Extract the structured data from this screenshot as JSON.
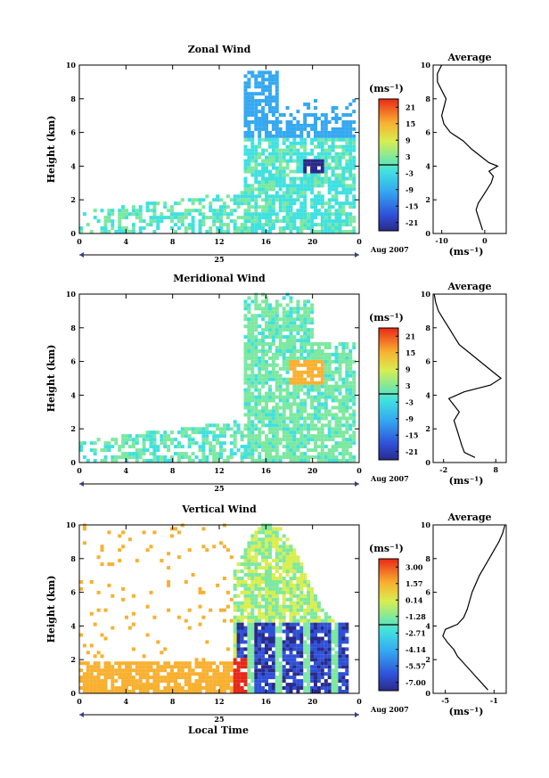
{
  "xlabel": "Local Time",
  "chart_data": [
    {
      "type": "heatmap",
      "title": "Zonal Wind",
      "ylabel": "Height (km)",
      "ylim": [
        0,
        10
      ],
      "xlim": [
        0,
        24
      ],
      "x_ticks": [
        "0",
        "4",
        "8",
        "12",
        "16",
        "20",
        "0"
      ],
      "y_ticks": [
        "0",
        "2",
        "4",
        "6",
        "8",
        "10"
      ],
      "day_label": "25",
      "date_label": "Aug 2007",
      "colorbar": {
        "unit": "(ms⁻¹)",
        "ticks": [
          "21",
          "15",
          "9",
          "3",
          "-3",
          "-9",
          "-15",
          "-21"
        ],
        "range": [
          -24,
          24
        ]
      },
      "profile": {
        "title": "Average",
        "xlabel": "(ms⁻¹)",
        "x_ticks": [
          "-10",
          "0"
        ],
        "xlim": [
          -12,
          5
        ],
        "ylim": [
          0,
          10
        ],
        "y_ticks": [
          "0",
          "2",
          "4",
          "6",
          "8",
          "10"
        ],
        "points": [
          [
            -0.5,
            0.2
          ],
          [
            -1,
            0.6
          ],
          [
            -1.5,
            1
          ],
          [
            -2,
            1.4
          ],
          [
            -1.5,
            1.8
          ],
          [
            -0.5,
            2.2
          ],
          [
            0.5,
            2.6
          ],
          [
            1.5,
            3
          ],
          [
            2,
            3.4
          ],
          [
            1,
            3.7
          ],
          [
            3,
            4
          ],
          [
            1,
            4.2
          ],
          [
            -1,
            4.6
          ],
          [
            -3,
            5
          ],
          [
            -5,
            5.5
          ],
          [
            -8,
            6
          ],
          [
            -9.5,
            6.5
          ],
          [
            -10,
            7
          ],
          [
            -9.5,
            7.5
          ],
          [
            -9,
            8
          ],
          [
            -10,
            8.5
          ],
          [
            -11,
            9
          ],
          [
            -11,
            9.5
          ],
          [
            -10,
            10
          ]
        ]
      }
    },
    {
      "type": "heatmap",
      "title": "Meridional Wind",
      "ylabel": "Height (km)",
      "ylim": [
        0,
        10
      ],
      "xlim": [
        0,
        24
      ],
      "x_ticks": [
        "0",
        "4",
        "8",
        "12",
        "16",
        "20",
        "0"
      ],
      "y_ticks": [
        "0",
        "2",
        "4",
        "6",
        "8",
        "10"
      ],
      "day_label": "25",
      "date_label": "Aug 2007",
      "colorbar": {
        "unit": "(ms⁻¹)",
        "ticks": [
          "21",
          "15",
          "9",
          "3",
          "-3",
          "-9",
          "-15",
          "-21"
        ],
        "range": [
          -24,
          24
        ]
      },
      "profile": {
        "title": "Average",
        "xlabel": "(ms⁻¹)",
        "x_ticks": [
          "-2",
          "8"
        ],
        "xlim": [
          -4,
          10
        ],
        "ylim": [
          0,
          10
        ],
        "y_ticks": [
          "0",
          "2",
          "4",
          "6",
          "8",
          "10"
        ],
        "points": [
          [
            4,
            0.3
          ],
          [
            2,
            0.6
          ],
          [
            1.5,
            1
          ],
          [
            1,
            1.5
          ],
          [
            0.5,
            2
          ],
          [
            0,
            2.5
          ],
          [
            1,
            3
          ],
          [
            0,
            3.4
          ],
          [
            -1,
            3.8
          ],
          [
            2,
            4.2
          ],
          [
            7,
            4.6
          ],
          [
            9,
            5
          ],
          [
            7,
            5.5
          ],
          [
            5,
            6
          ],
          [
            3,
            6.5
          ],
          [
            1,
            7
          ],
          [
            0,
            7.5
          ],
          [
            -1,
            8
          ],
          [
            -2,
            8.5
          ],
          [
            -3,
            9
          ],
          [
            -3.5,
            9.5
          ],
          [
            -3.8,
            10
          ]
        ]
      }
    },
    {
      "type": "heatmap",
      "title": "Vertical Wind",
      "ylabel": "Height (km)",
      "ylim": [
        0,
        10
      ],
      "xlim": [
        0,
        24
      ],
      "x_ticks": [
        "0",
        "4",
        "8",
        "12",
        "16",
        "20",
        "0"
      ],
      "y_ticks": [
        "0",
        "2",
        "4",
        "6",
        "8",
        "10"
      ],
      "day_label": "25",
      "date_label": "Aug 2007",
      "colorbar": {
        "unit": "(ms⁻¹)",
        "ticks": [
          "3.00",
          "1.57",
          "0.14",
          "-1.28",
          "-2.71",
          "-4.14",
          "-5.57",
          "-7.00"
        ],
        "range": [
          -8,
          4
        ]
      },
      "profile": {
        "title": "Average",
        "xlabel": "(ms⁻¹)",
        "x_ticks": [
          "-5",
          "-1"
        ],
        "xlim": [
          -6,
          0
        ],
        "ylim": [
          0,
          10
        ],
        "y_ticks": [
          "0",
          "2",
          "4",
          "6",
          "8",
          "10"
        ],
        "points": [
          [
            -1.5,
            0.2
          ],
          [
            -2,
            0.6
          ],
          [
            -2.5,
            1
          ],
          [
            -3,
            1.4
          ],
          [
            -3.5,
            1.8
          ],
          [
            -4,
            2.2
          ],
          [
            -4.3,
            2.6
          ],
          [
            -4.8,
            3
          ],
          [
            -5.2,
            3.4
          ],
          [
            -5,
            3.8
          ],
          [
            -4,
            4.1
          ],
          [
            -3.5,
            4.5
          ],
          [
            -3.2,
            5
          ],
          [
            -3,
            5.5
          ],
          [
            -2.8,
            6
          ],
          [
            -2.5,
            6.5
          ],
          [
            -2.2,
            7
          ],
          [
            -1.8,
            7.5
          ],
          [
            -1.4,
            8
          ],
          [
            -1,
            8.5
          ],
          [
            -0.6,
            9
          ],
          [
            -0.3,
            9.5
          ],
          [
            -0.1,
            10
          ]
        ]
      }
    }
  ]
}
